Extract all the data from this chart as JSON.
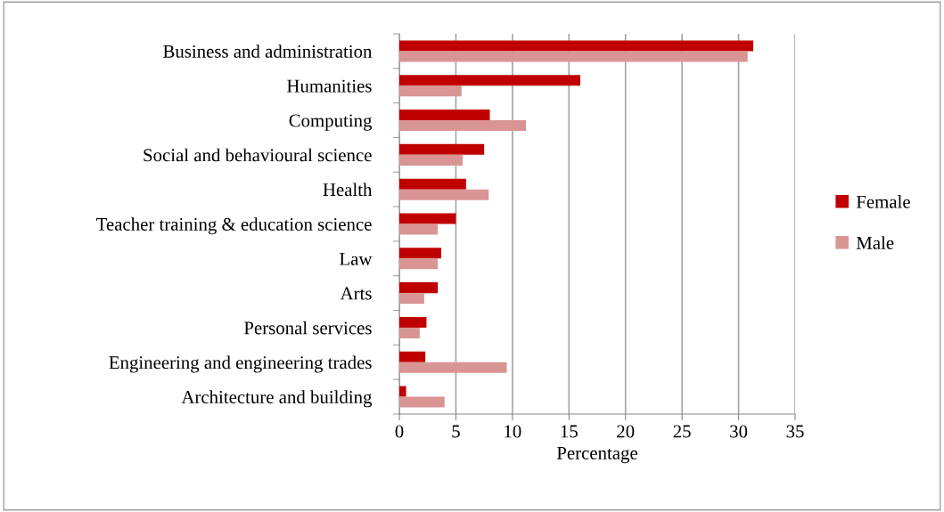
{
  "chart_data": {
    "type": "bar",
    "orientation": "horizontal",
    "xlabel": "Percentage",
    "categories": [
      "Business and administration",
      "Humanities",
      "Computing",
      "Social and behavioural science",
      "Health",
      "Teacher training & education science",
      "Law",
      "Arts",
      "Personal services",
      "Engineering and engineering trades",
      "Architecture and building"
    ],
    "series": [
      {
        "name": "Female",
        "color": "#c00000",
        "values": [
          31.3,
          16.0,
          8.0,
          7.5,
          5.9,
          5.0,
          3.7,
          3.4,
          2.4,
          2.3,
          0.6
        ]
      },
      {
        "name": "Male",
        "color": "#d99594",
        "values": [
          30.8,
          5.5,
          11.2,
          5.6,
          7.9,
          3.4,
          3.4,
          2.2,
          1.8,
          9.5,
          4.0
        ]
      }
    ],
    "xlim": [
      0,
      35
    ],
    "xticks": [
      0,
      5,
      10,
      15,
      20,
      25,
      30,
      35
    ],
    "grid": "x",
    "legend": "right"
  }
}
